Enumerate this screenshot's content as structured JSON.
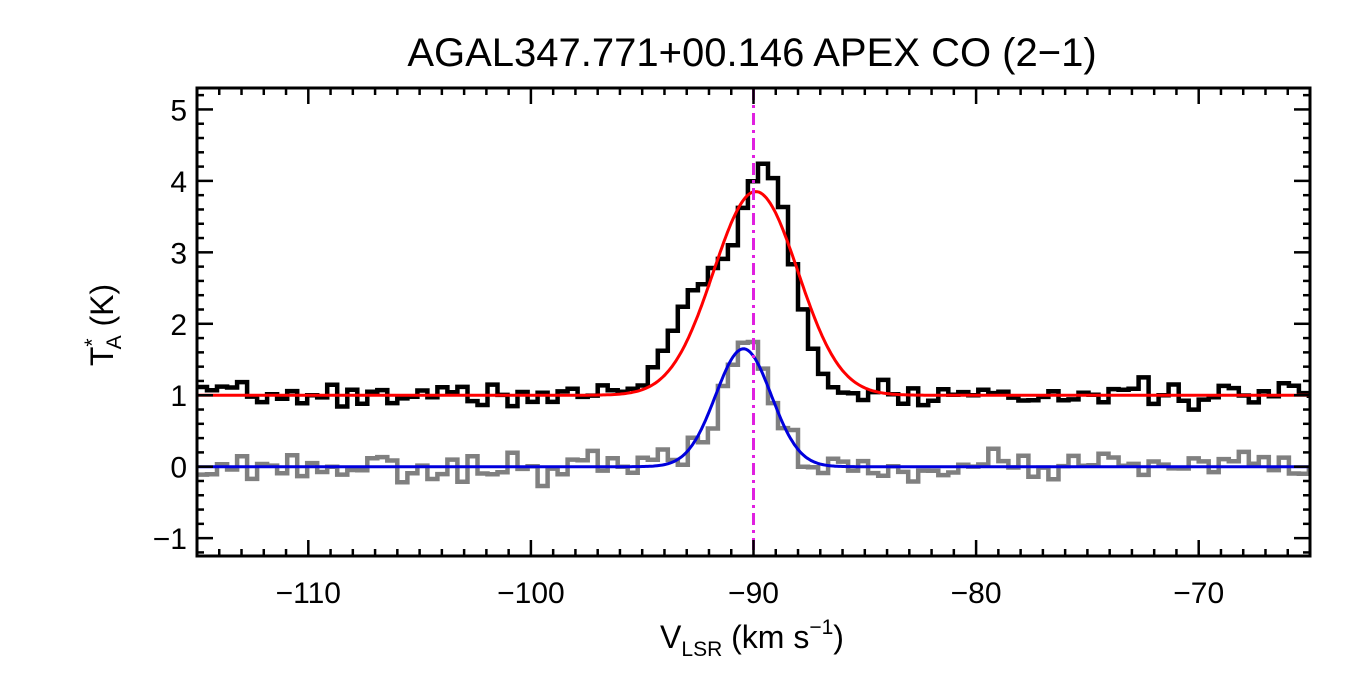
{
  "chart_data": {
    "type": "line",
    "title": "AGAL347.771+00.146  APEX CO (2−1)",
    "xlabel": {
      "main": "V",
      "sub": "LSR",
      "rest": " (km s",
      "sup": "−1",
      "close": ")"
    },
    "ylabel": {
      "main": "T",
      "sup": "*",
      "sub": "A",
      "rest": " (K)"
    },
    "xlim": [
      -115,
      -65
    ],
    "ylim": [
      -1.25,
      5.3
    ],
    "xticks": [
      -110,
      -100,
      -90,
      -80,
      -70
    ],
    "xtick_labels": [
      "−110",
      "−100",
      "−90",
      "−80",
      "−70"
    ],
    "yticks": [
      -1,
      0,
      1,
      2,
      3,
      4,
      5
    ],
    "ytick_labels": [
      "−1",
      "0",
      "1",
      "2",
      "3",
      "4",
      "5"
    ],
    "reference_line": {
      "x": -90.0,
      "color": "#e020e0",
      "style": "dash-dot"
    },
    "series": [
      {
        "kind": "spectrum",
        "style": "histogram",
        "color": "#000000",
        "offset": 1.0,
        "noise": 0.08,
        "seed": 7,
        "step": 0.45,
        "components": [
          {
            "amp": 1.55,
            "center": -92.3,
            "sigma": 1.3
          },
          {
            "amp": 3.05,
            "center": -89.4,
            "sigma": 1.15
          }
        ]
      },
      {
        "kind": "fit",
        "color": "#ff0000",
        "offset": 1.0,
        "amp": 2.85,
        "center": -89.9,
        "sigma": 1.9
      },
      {
        "kind": "spectrum",
        "style": "histogram",
        "color": "#808080",
        "offset": 0.0,
        "noise": 0.1,
        "seed": 23,
        "step": 0.45,
        "components": [
          {
            "amp": 1.7,
            "center": -90.4,
            "sigma": 1.15
          }
        ]
      },
      {
        "kind": "fit",
        "color": "#0000dd",
        "offset": 0.0,
        "amp": 1.65,
        "center": -90.45,
        "sigma": 1.25
      }
    ]
  }
}
